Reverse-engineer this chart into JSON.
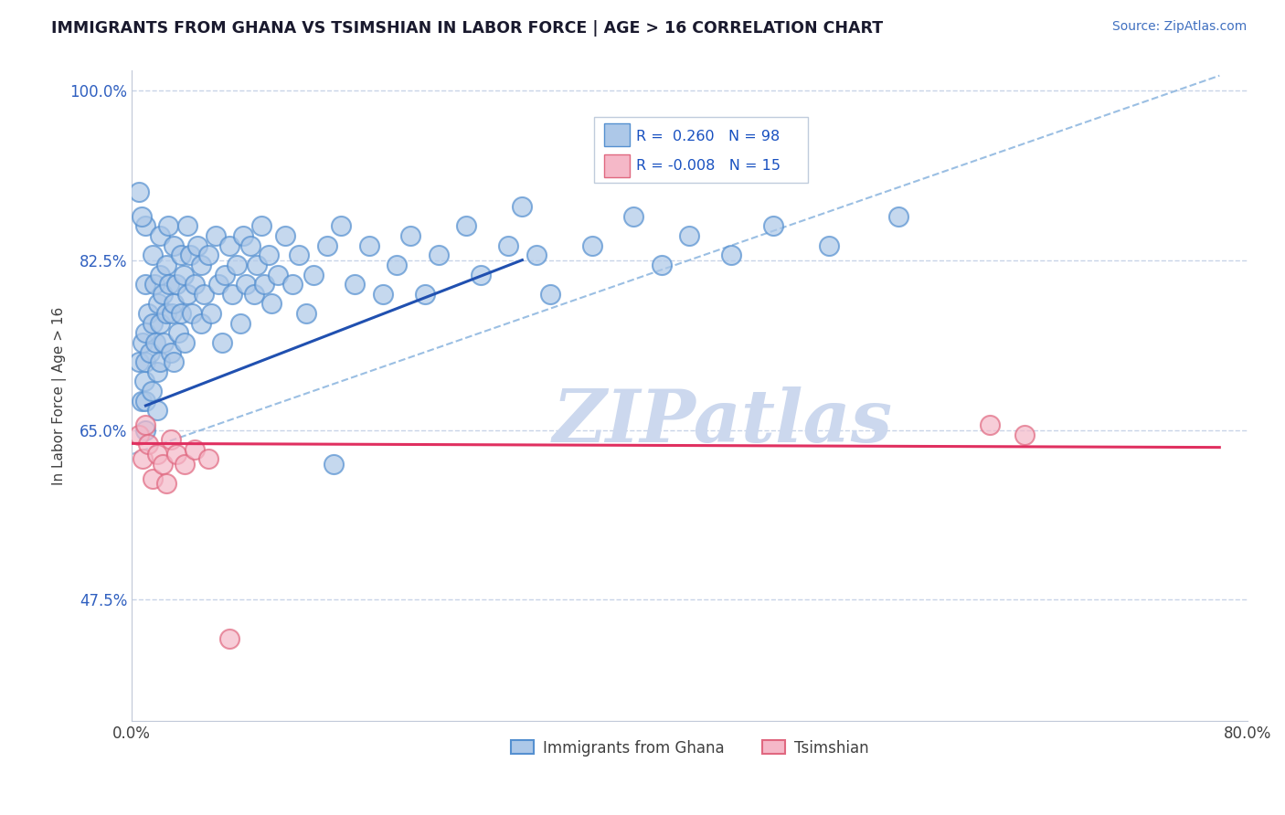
{
  "title": "IMMIGRANTS FROM GHANA VS TSIMSHIAN IN LABOR FORCE | AGE > 16 CORRELATION CHART",
  "source_text": "Source: ZipAtlas.com",
  "ylabel": "In Labor Force | Age > 16",
  "xlim": [
    0.0,
    0.8
  ],
  "ylim": [
    0.35,
    1.02
  ],
  "xticks": [
    0.0,
    0.8
  ],
  "xticklabels": [
    "0.0%",
    "80.0%"
  ],
  "yticks": [
    0.475,
    0.65,
    0.825,
    1.0
  ],
  "yticklabels": [
    "47.5%",
    "65.0%",
    "82.5%",
    "100.0%"
  ],
  "ghana_R": 0.26,
  "ghana_N": 98,
  "tsimshian_R": -0.008,
  "tsimshian_N": 15,
  "ghana_color": "#adc8e8",
  "ghana_edge_color": "#5590d0",
  "tsimshian_color": "#f5b8c8",
  "tsimshian_edge_color": "#e06880",
  "ghana_trend_color": "#2050b0",
  "tsimshian_trend_color": "#e03060",
  "ref_line_color": "#90b8e0",
  "grid_color": "#c8d4e8",
  "watermark_color": "#ccd8ee",
  "legend_R_color": "#1850c0",
  "legend_box_color": "#c0ccdc",
  "axis_label_color": "#3060c0",
  "title_color": "#1a1a2e",
  "source_color": "#4070c0",
  "ghana_trend_x": [
    0.01,
    0.28
  ],
  "ghana_trend_y": [
    0.675,
    0.825
  ],
  "tsimshian_trend_x": [
    0.0,
    0.78
  ],
  "tsimshian_trend_y": [
    0.636,
    0.632
  ],
  "ref_line_x": [
    0.0,
    0.78
  ],
  "ref_line_y": [
    0.625,
    1.015
  ],
  "ghana_pts_x": [
    0.005,
    0.007,
    0.008,
    0.009,
    0.01,
    0.01,
    0.01,
    0.01,
    0.01,
    0.01,
    0.012,
    0.013,
    0.014,
    0.015,
    0.015,
    0.016,
    0.017,
    0.018,
    0.018,
    0.019,
    0.02,
    0.02,
    0.02,
    0.02,
    0.022,
    0.023,
    0.025,
    0.025,
    0.026,
    0.027,
    0.028,
    0.029,
    0.03,
    0.03,
    0.03,
    0.032,
    0.033,
    0.035,
    0.035,
    0.037,
    0.038,
    0.04,
    0.04,
    0.042,
    0.043,
    0.045,
    0.047,
    0.05,
    0.05,
    0.052,
    0.055,
    0.057,
    0.06,
    0.062,
    0.065,
    0.067,
    0.07,
    0.072,
    0.075,
    0.078,
    0.08,
    0.082,
    0.085,
    0.088,
    0.09,
    0.093,
    0.095,
    0.098,
    0.1,
    0.105,
    0.11,
    0.115,
    0.12,
    0.125,
    0.13,
    0.14,
    0.15,
    0.16,
    0.17,
    0.18,
    0.19,
    0.2,
    0.21,
    0.22,
    0.24,
    0.25,
    0.27,
    0.28,
    0.29,
    0.3,
    0.33,
    0.36,
    0.38,
    0.4,
    0.43,
    0.46,
    0.5,
    0.55
  ],
  "ghana_pts_y": [
    0.72,
    0.68,
    0.74,
    0.7,
    0.8,
    0.75,
    0.72,
    0.68,
    0.65,
    0.86,
    0.77,
    0.73,
    0.69,
    0.83,
    0.76,
    0.8,
    0.74,
    0.71,
    0.67,
    0.78,
    0.85,
    0.81,
    0.76,
    0.72,
    0.79,
    0.74,
    0.82,
    0.77,
    0.86,
    0.8,
    0.73,
    0.77,
    0.84,
    0.78,
    0.72,
    0.8,
    0.75,
    0.83,
    0.77,
    0.81,
    0.74,
    0.86,
    0.79,
    0.83,
    0.77,
    0.8,
    0.84,
    0.82,
    0.76,
    0.79,
    0.83,
    0.77,
    0.85,
    0.8,
    0.74,
    0.81,
    0.84,
    0.79,
    0.82,
    0.76,
    0.85,
    0.8,
    0.84,
    0.79,
    0.82,
    0.86,
    0.8,
    0.83,
    0.78,
    0.81,
    0.85,
    0.8,
    0.83,
    0.77,
    0.81,
    0.84,
    0.86,
    0.8,
    0.84,
    0.79,
    0.82,
    0.85,
    0.79,
    0.83,
    0.86,
    0.81,
    0.84,
    0.88,
    0.83,
    0.79,
    0.84,
    0.87,
    0.82,
    0.85,
    0.83,
    0.86,
    0.84,
    0.87
  ],
  "tsim_pts_x": [
    0.005,
    0.008,
    0.01,
    0.012,
    0.015,
    0.018,
    0.022,
    0.025,
    0.028,
    0.032,
    0.038,
    0.045,
    0.055,
    0.615,
    0.64
  ],
  "tsim_pts_y": [
    0.645,
    0.62,
    0.655,
    0.635,
    0.6,
    0.625,
    0.615,
    0.595,
    0.64,
    0.625,
    0.615,
    0.63,
    0.62,
    0.655,
    0.645
  ]
}
